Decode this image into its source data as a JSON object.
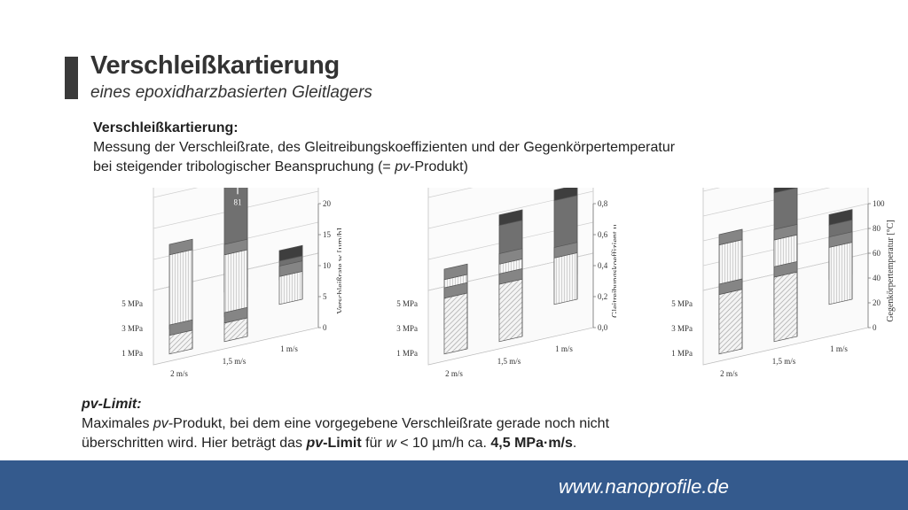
{
  "header": {
    "title": "Verschleißkartierung",
    "subtitle": "eines epoxidharzbasierten Gleitlagers"
  },
  "intro": {
    "heading": "Verschleißkartierung:",
    "line1": "Messung der Verschleißrate, des Gleitreibungskoeffizienten und der Gegenkörpertemperatur",
    "line2_prefix": "bei steigender tribologischer Beanspruchung (= ",
    "line2_italic": "pv",
    "line2_suffix": "-Produkt)"
  },
  "pv_limit": {
    "heading": "pv-Limit:",
    "l1_a": "Maximales ",
    "l1_b": "pv",
    "l1_c": "-Produkt, bei dem eine vorgegebene Verschleißrate gerade noch nicht",
    "l2_a": "überschritten wird. Hier beträgt das ",
    "l2_b": "pv",
    "l2_c": "-Limit",
    "l2_d": " für ",
    "l2_e": "w",
    "l2_f": " < 10 µm/h ca. ",
    "l2_g": "4,5 MPa·m/s",
    "l2_h": "."
  },
  "footer": {
    "url": "www.nanoprofile.de"
  },
  "colors": {
    "footer": "#345a8d",
    "bar_dark": "#707070",
    "bar_light": "#f2f2f2"
  },
  "chart_data": [
    {
      "type": "bar",
      "x_categories": [
        "2 m/s",
        "1,5 m/s",
        "1 m/s"
      ],
      "y_categories": [
        "1 MPa",
        "3 MPa",
        "5 MPa"
      ],
      "zlabel": "Verschleißrate w [µm/h]",
      "zticks": [
        "0",
        "5",
        "10",
        "15",
        "20"
      ],
      "zlim": [
        0,
        20
      ],
      "annotation": "81",
      "values": [
        [
          3.0,
          12.0
        ],
        [
          3.0,
          10.0,
          19.5
        ],
        [
          null,
          4.5,
          3.0
        ]
      ]
    },
    {
      "type": "bar",
      "x_categories": [
        "2 m/s",
        "1,5 m/s",
        "1 m/s"
      ],
      "y_categories": [
        "1 MPa",
        "3 MPa",
        "5 MPa"
      ],
      "zlabel": "Gleitreibungskoeffizient µ",
      "zticks": [
        "0,0",
        "0,2",
        "0,4",
        "0,6",
        "0,8"
      ],
      "zlim": [
        0,
        0.8
      ],
      "values": [
        [
          0.36,
          0.32
        ],
        [
          0.37,
          0.34,
          0.43
        ],
        [
          null,
          0.3,
          0.51
        ]
      ]
    },
    {
      "type": "bar",
      "x_categories": [
        "2 m/s",
        "1,5 m/s",
        "1 m/s"
      ],
      "y_categories": [
        "1 MPa",
        "3 MPa",
        "5 MPa"
      ],
      "zlabel": "Gegenkörpertemperatur [°C]",
      "zticks": [
        "0",
        "20",
        "40",
        "60",
        "80",
        "100"
      ],
      "zlim": [
        0,
        100
      ],
      "values": [
        [
          48,
          68
        ],
        [
          52,
          62,
          80
        ],
        [
          null,
          46,
          44
        ]
      ]
    }
  ]
}
